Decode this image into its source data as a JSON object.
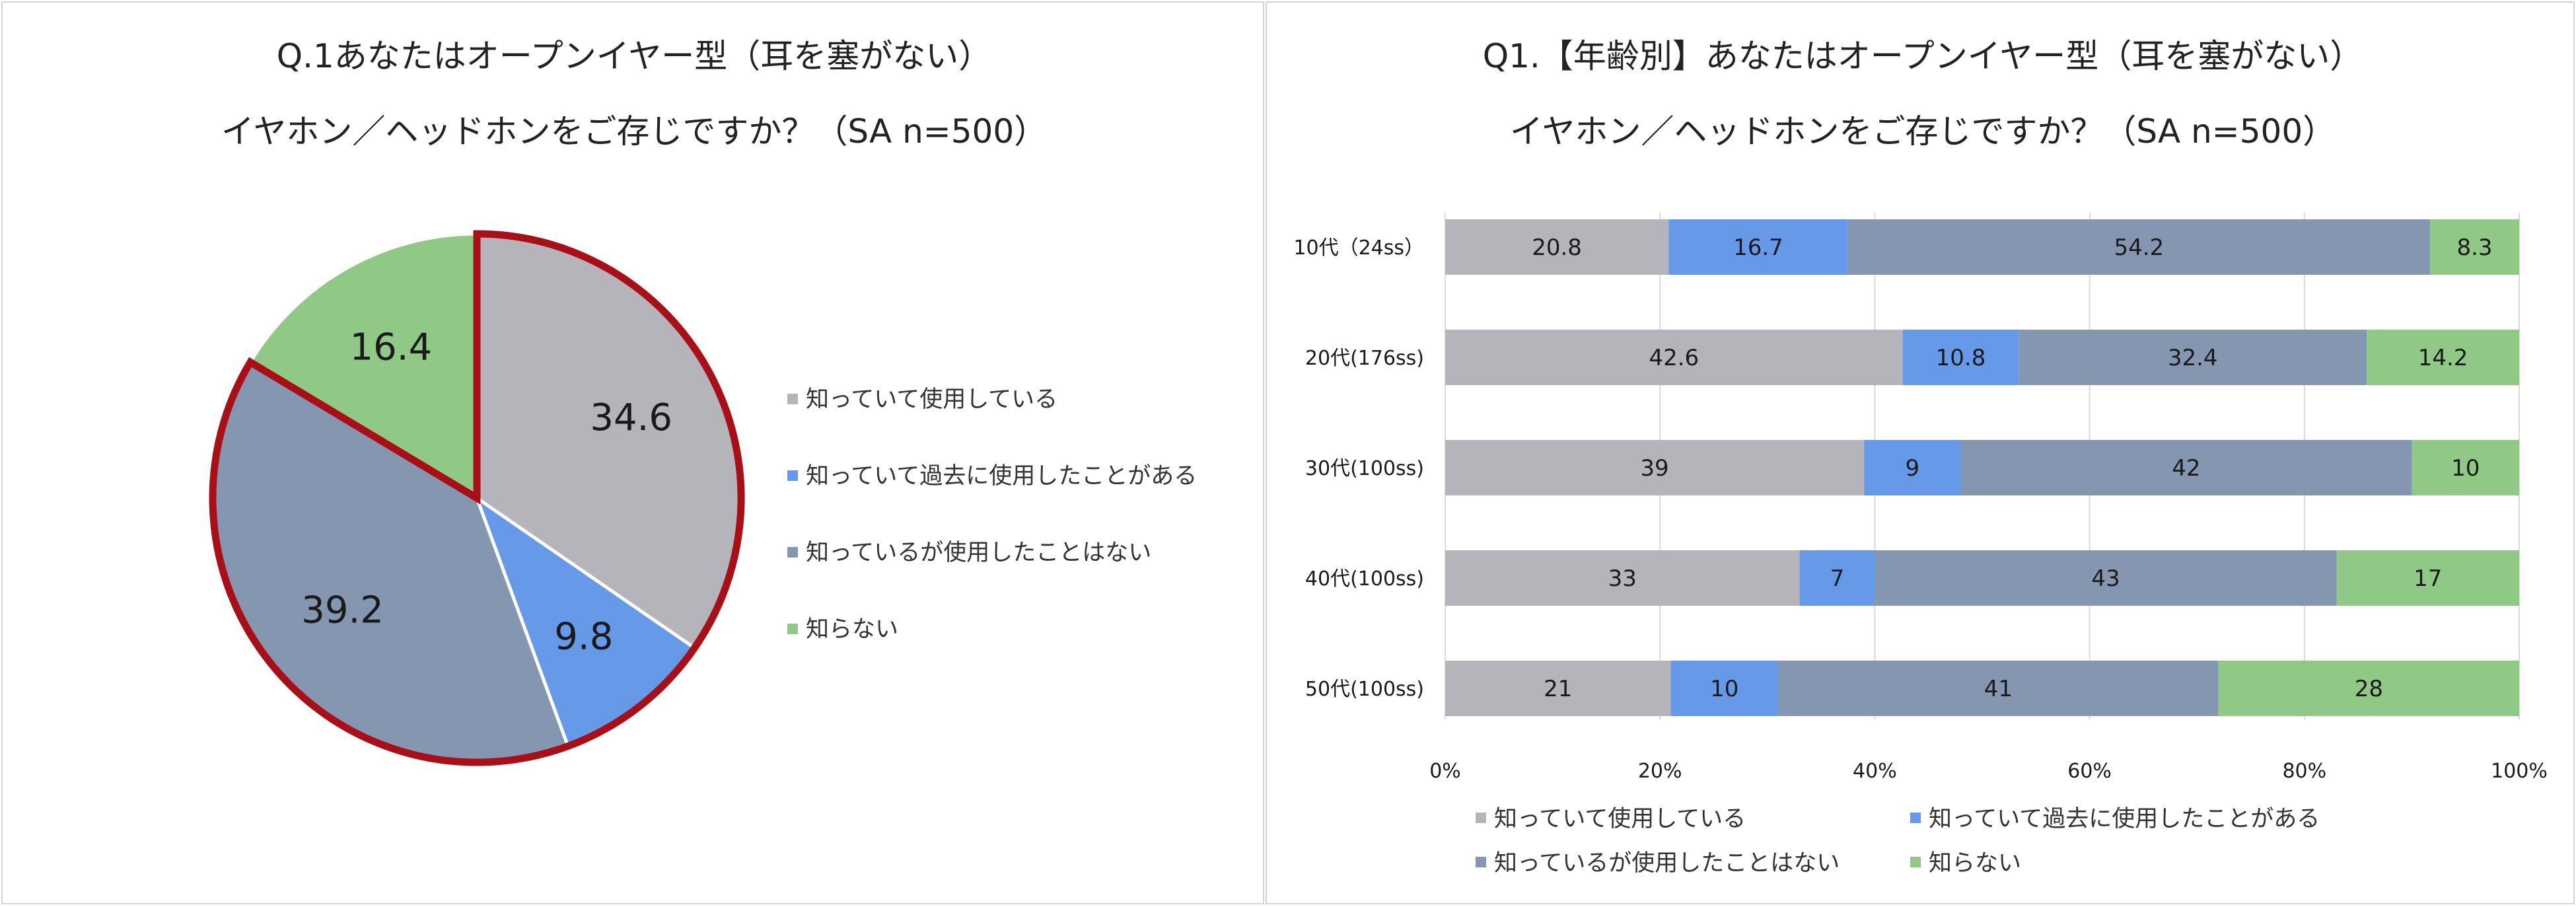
{
  "chart_data": [
    {
      "type": "pie",
      "title_lines": [
        "Q.1あなたはオープンイヤー型（耳を塞がない）",
        "イヤホン／ヘッドホンをご存じですか？（SA n=500）"
      ],
      "categories": [
        "知っていて使用している",
        "知っていて過去に使用したことがある",
        "知っているが使用したことはない",
        "知らない"
      ],
      "values": [
        34.6,
        9.8,
        39.2,
        16.4
      ],
      "colors": [
        "#b5b4bb",
        "#6699e8",
        "#8496b0",
        "#8fc985"
      ],
      "highlight": "知っていて使用している + 知っていて過去に使用したことがある + 知っているが使用したことはない (red outline)",
      "highlight_color": "#a80f16",
      "legend_position": "right"
    },
    {
      "type": "bar",
      "orientation": "horizontal-stacked-100",
      "title_lines": [
        "Q1.【年齢別】あなたはオープンイヤー型（耳を塞がない）",
        "イヤホン／ヘッドホンをご存じですか？（SA n=500）"
      ],
      "categories": [
        "10代（24ss）",
        "20代(176ss)",
        "30代(100ss)",
        "40代(100ss)",
        "50代(100ss)"
      ],
      "series": [
        {
          "name": "知っていて使用している",
          "color": "#b5b4bb",
          "values": [
            20.8,
            42.6,
            39,
            33,
            21
          ]
        },
        {
          "name": "知っていて過去に使用したことがある",
          "color": "#6699e8",
          "values": [
            16.7,
            10.8,
            9,
            7,
            10
          ]
        },
        {
          "name": "知っているが使用したことはない",
          "color": "#8496b0",
          "values": [
            54.2,
            32.4,
            42,
            43,
            41
          ]
        },
        {
          "name": "知らない",
          "color": "#8fc985",
          "values": [
            8.3,
            14.2,
            10,
            17,
            28
          ]
        }
      ],
      "x_ticks": [
        "0%",
        "20%",
        "40%",
        "60%",
        "80%",
        "100%"
      ],
      "xlim": [
        0,
        100
      ],
      "grid": true,
      "legend_position": "bottom"
    }
  ]
}
